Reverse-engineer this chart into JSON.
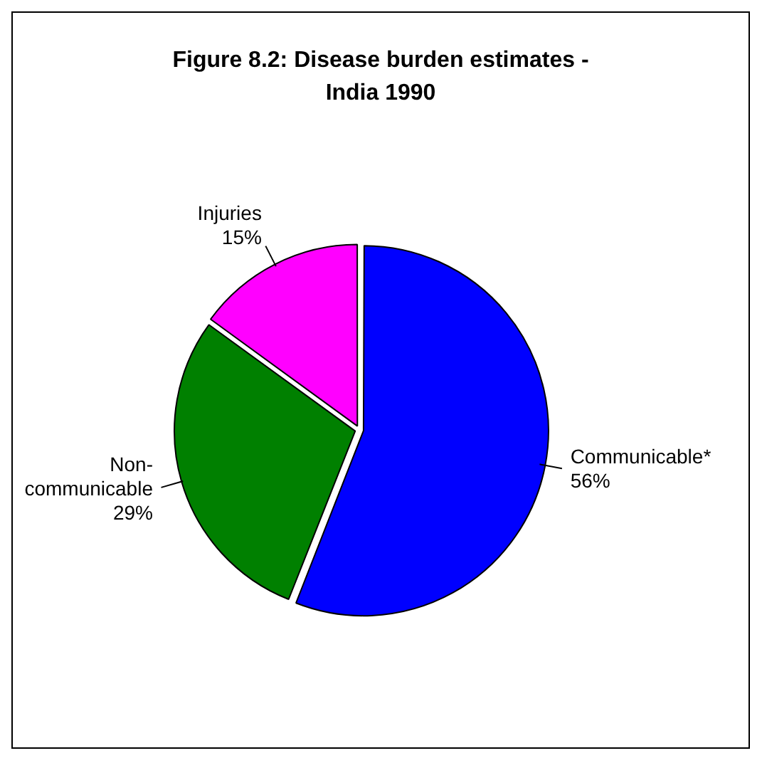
{
  "chart_data": {
    "type": "pie",
    "title": "Figure 8.2: Disease burden estimates - India 1990",
    "categories": [
      "Communicable*",
      "Non-communicable",
      "Injuries"
    ],
    "values": [
      56,
      29,
      15
    ],
    "value_labels": [
      "56%",
      "29%",
      "15%"
    ],
    "colors": [
      "#0000ff",
      "#008000",
      "#ff00ff"
    ],
    "legend": false
  }
}
